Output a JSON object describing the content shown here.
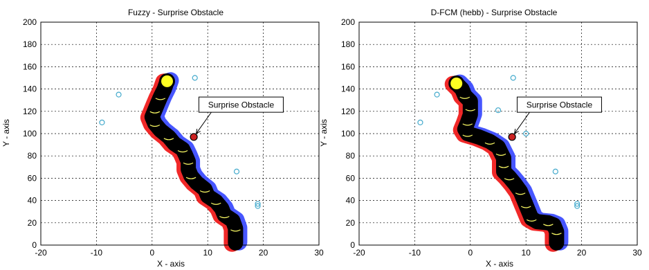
{
  "chart_data": [
    {
      "type": "scatter",
      "title": "Fuzzy - Surprise Obstacle",
      "xlabel": "X - axis",
      "ylabel": "Y - axis",
      "xlim": [
        -20,
        30
      ],
      "ylim": [
        0,
        200
      ],
      "xticks": [
        "-20",
        "-10",
        "0",
        "10",
        "20",
        "30"
      ],
      "yticks": [
        "0",
        "20",
        "40",
        "60",
        "80",
        "100",
        "120",
        "140",
        "160",
        "180",
        "200"
      ],
      "grid": true,
      "annotation": {
        "text": "Surprise Obstacle",
        "point": [
          7.5,
          97
        ],
        "text_at": [
          16,
          126
        ]
      },
      "surprise_obstacle": {
        "x": 7.5,
        "y": 97,
        "color": "#cc2222"
      },
      "goal": {
        "x": 2.7,
        "y": 147,
        "color": "#ffff22"
      },
      "start": {
        "x": 15,
        "y": 2
      },
      "obstacles": [
        {
          "x": -6,
          "y": 135
        },
        {
          "x": -9,
          "y": 110
        },
        {
          "x": 7.7,
          "y": 150
        },
        {
          "x": 15.2,
          "y": 66
        },
        {
          "x": 19,
          "y": 37
        },
        {
          "x": 19,
          "y": 35
        }
      ],
      "path": [
        [
          15,
          2
        ],
        [
          15,
          15
        ],
        [
          14.5,
          22
        ],
        [
          13,
          27
        ],
        [
          12.5,
          33
        ],
        [
          11.5,
          39
        ],
        [
          10,
          44
        ],
        [
          9.5,
          50
        ],
        [
          8,
          56
        ],
        [
          7,
          62
        ],
        [
          6.5,
          68
        ],
        [
          6.5,
          75
        ],
        [
          6,
          81
        ],
        [
          5.5,
          86
        ],
        [
          4,
          91
        ],
        [
          3,
          97
        ],
        [
          1.5,
          103
        ],
        [
          0.5,
          109
        ],
        [
          0,
          115
        ],
        [
          0.5,
          121
        ],
        [
          1,
          127
        ],
        [
          1.5,
          133
        ],
        [
          2.2,
          140
        ],
        [
          2.7,
          147
        ]
      ],
      "colors": {
        "path": "#000000",
        "left_trail": "#ee1111",
        "right_trail": "#3344ff",
        "obstacle": "#44aacc"
      }
    },
    {
      "type": "scatter",
      "title": "D-FCM (hebb) - Surprise Obstacle",
      "xlabel": "X - axis",
      "ylabel": "Y - axis",
      "xlim": [
        -20,
        30
      ],
      "ylim": [
        0,
        200
      ],
      "xticks": [
        "-20",
        "-10",
        "0",
        "10",
        "20",
        "30"
      ],
      "yticks": [
        "0",
        "20",
        "40",
        "60",
        "80",
        "100",
        "120",
        "140",
        "160",
        "180",
        "200"
      ],
      "grid": true,
      "annotation": {
        "text": "Surprise Obstacle",
        "point": [
          7.5,
          97
        ],
        "text_at": [
          16,
          126
        ]
      },
      "surprise_obstacle": {
        "x": 7.5,
        "y": 97,
        "color": "#cc2222"
      },
      "goal": {
        "x": -2.5,
        "y": 145,
        "color": "#ffff22"
      },
      "start": {
        "x": 15.5,
        "y": 2
      },
      "obstacles": [
        {
          "x": -6,
          "y": 135
        },
        {
          "x": -9,
          "y": 110
        },
        {
          "x": 7.7,
          "y": 150
        },
        {
          "x": 5,
          "y": 121
        },
        {
          "x": 10,
          "y": 100
        },
        {
          "x": 15.3,
          "y": 66
        },
        {
          "x": 19.2,
          "y": 37
        },
        {
          "x": 19.2,
          "y": 35
        }
      ],
      "path": [
        [
          15.5,
          2
        ],
        [
          15.5,
          12
        ],
        [
          15,
          18
        ],
        [
          14,
          20
        ],
        [
          12,
          21
        ],
        [
          11,
          24
        ],
        [
          10.5,
          30
        ],
        [
          10,
          36
        ],
        [
          9.5,
          42
        ],
        [
          9,
          48
        ],
        [
          8,
          55
        ],
        [
          7,
          61
        ],
        [
          6,
          66
        ],
        [
          6,
          72
        ],
        [
          6,
          78
        ],
        [
          5.5,
          83
        ],
        [
          5,
          88
        ],
        [
          3.5,
          93
        ],
        [
          1.5,
          97
        ],
        [
          -0.5,
          100
        ],
        [
          -1,
          104
        ],
        [
          -0.5,
          110
        ],
        [
          0,
          117
        ],
        [
          0,
          123
        ],
        [
          0,
          129
        ],
        [
          -1,
          134
        ],
        [
          -1.5,
          140
        ],
        [
          -2.5,
          145
        ]
      ],
      "colors": {
        "path": "#000000",
        "left_trail": "#ee1111",
        "right_trail": "#3344ff",
        "obstacle": "#44aacc"
      }
    }
  ]
}
